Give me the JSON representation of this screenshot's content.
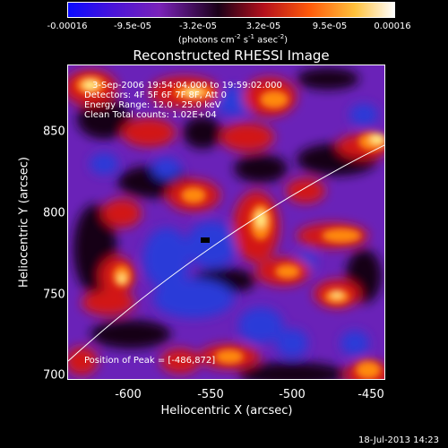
{
  "colorbar": {
    "ticks": [
      "-0.00016",
      "-9.5e-05",
      "-3.2e-05",
      "3.2e-05",
      "9.5e-05",
      "0.00016"
    ],
    "units_prefix": "(photons cm",
    "units_exp1": "-2",
    "units_mid1": " s",
    "units_exp2": "-1",
    "units_mid2": " asec",
    "units_exp3": "-2",
    "units_suffix": ")"
  },
  "plot": {
    "title": "Reconstructed RHESSI Image",
    "annotations": {
      "time": "3-Sep-2006 19:54:04.000 to 19:59:02.000",
      "detectors": "Detectors: 4F 5F 6F 7F 8F, Att 0",
      "energy": "Energy Range: 12.0 - 25.0 keV",
      "clean": "Clean     Total counts: 1.02E+04",
      "peak": "Position of Peak = [-486,872]"
    },
    "x_axis": {
      "label": "Heliocentric X (arcsec)",
      "ticks": [
        "-600",
        "-550",
        "-500",
        "-450"
      ]
    },
    "y_axis": {
      "label": "Heliocentric Y (arcsec)",
      "ticks": [
        "850",
        "800",
        "750",
        "700"
      ]
    }
  },
  "footer": {
    "date": "18-Jul-2013 14:23"
  }
}
